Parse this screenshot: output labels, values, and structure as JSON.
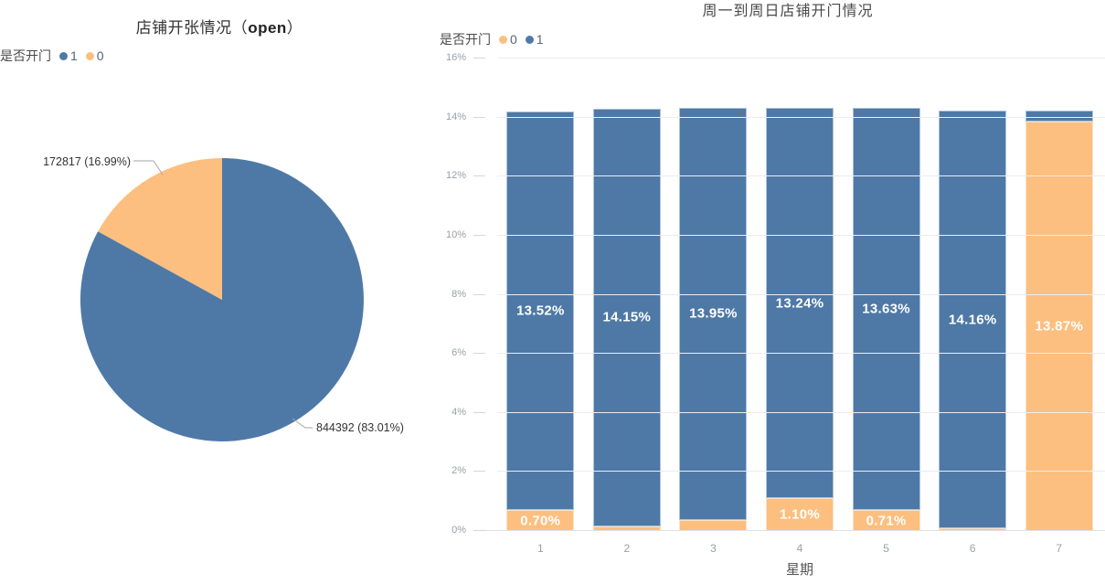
{
  "left_chart": {
    "title": {
      "prefix": "店铺开张情况（",
      "emphasis": "open",
      "suffix": "）"
    },
    "legend": {
      "label": "是否开门",
      "items": [
        {
          "name": "1"
        },
        {
          "name": "0"
        }
      ]
    }
  },
  "right_chart": {
    "legend": {
      "label": "是否开门",
      "items": [
        {
          "name": "0"
        },
        {
          "name": "1"
        }
      ]
    }
  },
  "colors": {
    "blue": "#4e79a7",
    "orange": "#fcbf7f",
    "grid": "#ececf0",
    "axis_label": "#9aa0a6",
    "title_text": "#333333",
    "bar_label": "#ffffff"
  },
  "chart_data": [
    {
      "type": "pie",
      "title": "店铺开张情况（open）",
      "legend_label": "是否开门",
      "legend_position": "top-left",
      "slices": [
        {
          "name": "1",
          "value": 844392,
          "pct": 83.01,
          "color": "#4e79a7",
          "label": "844392 (83.01%)"
        },
        {
          "name": "0",
          "value": 172817,
          "pct": 16.99,
          "color": "#fcbf7f",
          "label": "172817 (16.99%)"
        }
      ]
    },
    {
      "type": "bar",
      "subtype": "stacked",
      "title": "周一到周日店铺开门情况",
      "xlabel": "星期",
      "ylabel": "",
      "ylim": [
        0,
        16
      ],
      "grid": true,
      "legend_position": "top-left",
      "categories": [
        "1",
        "2",
        "3",
        "4",
        "5",
        "6",
        "7"
      ],
      "yticks": [
        "0%",
        "2%",
        "4%",
        "6%",
        "8%",
        "10%",
        "12%",
        "14%",
        "16%"
      ],
      "series": [
        {
          "name": "0",
          "color": "#fcbf7f",
          "values": [
            0.7,
            0.16,
            0.38,
            1.1,
            0.71,
            0.08,
            13.87
          ],
          "labels": [
            "0.70%",
            "",
            "",
            "1.10%",
            "0.71%",
            "",
            "13.87%"
          ]
        },
        {
          "name": "1",
          "color": "#4e79a7",
          "values": [
            13.52,
            14.15,
            13.95,
            13.24,
            13.63,
            14.16,
            0.38
          ],
          "labels": [
            "13.52%",
            "14.15%",
            "13.95%",
            "13.24%",
            "13.63%",
            "14.16%",
            ""
          ]
        }
      ]
    }
  ]
}
